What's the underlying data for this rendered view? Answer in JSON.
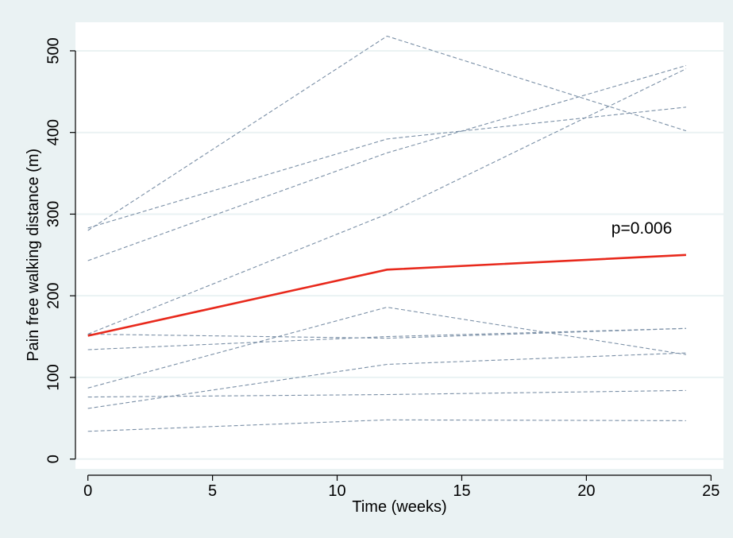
{
  "chart_data": {
    "type": "line",
    "xlabel": "Time (weeks)",
    "ylabel": "Pain free walking distance (m)",
    "xlim": [
      -0.5,
      25.5
    ],
    "ylim": [
      -12,
      535
    ],
    "x_ticks": [
      0,
      5,
      10,
      15,
      20,
      25
    ],
    "y_ticks": [
      0,
      100,
      200,
      300,
      400,
      500
    ],
    "grid": "horizontal",
    "background": "#eaf2f3",
    "plot_background": "#ffffff",
    "individual_color": "#7a8fa6",
    "mean_color": "#e8291c",
    "annotation": {
      "text": "p=0.006",
      "x": 21.0,
      "y": 283
    },
    "individual_series": [
      {
        "x": [
          0,
          12,
          24
        ],
        "y": [
          280,
          518,
          402
        ]
      },
      {
        "x": [
          0,
          12,
          24
        ],
        "y": [
          283,
          392,
          431
        ]
      },
      {
        "x": [
          0,
          12,
          24
        ],
        "y": [
          243,
          375,
          482
        ]
      },
      {
        "x": [
          0,
          12,
          24
        ],
        "y": [
          153,
          300,
          478
        ]
      },
      {
        "x": [
          0,
          12,
          24
        ],
        "y": [
          87,
          186,
          128
        ]
      },
      {
        "x": [
          0,
          12,
          24
        ],
        "y": [
          153,
          148,
          160
        ]
      },
      {
        "x": [
          0,
          12,
          24
        ],
        "y": [
          134,
          150,
          160
        ]
      },
      {
        "x": [
          0,
          12,
          24
        ],
        "y": [
          62,
          116,
          130
        ]
      },
      {
        "x": [
          0,
          12,
          24
        ],
        "y": [
          76,
          79,
          84
        ]
      },
      {
        "x": [
          0,
          12,
          24
        ],
        "y": [
          34,
          48,
          47
        ]
      }
    ],
    "mean_series": {
      "x": [
        0,
        12,
        24
      ],
      "y": [
        151,
        232,
        250
      ]
    }
  }
}
